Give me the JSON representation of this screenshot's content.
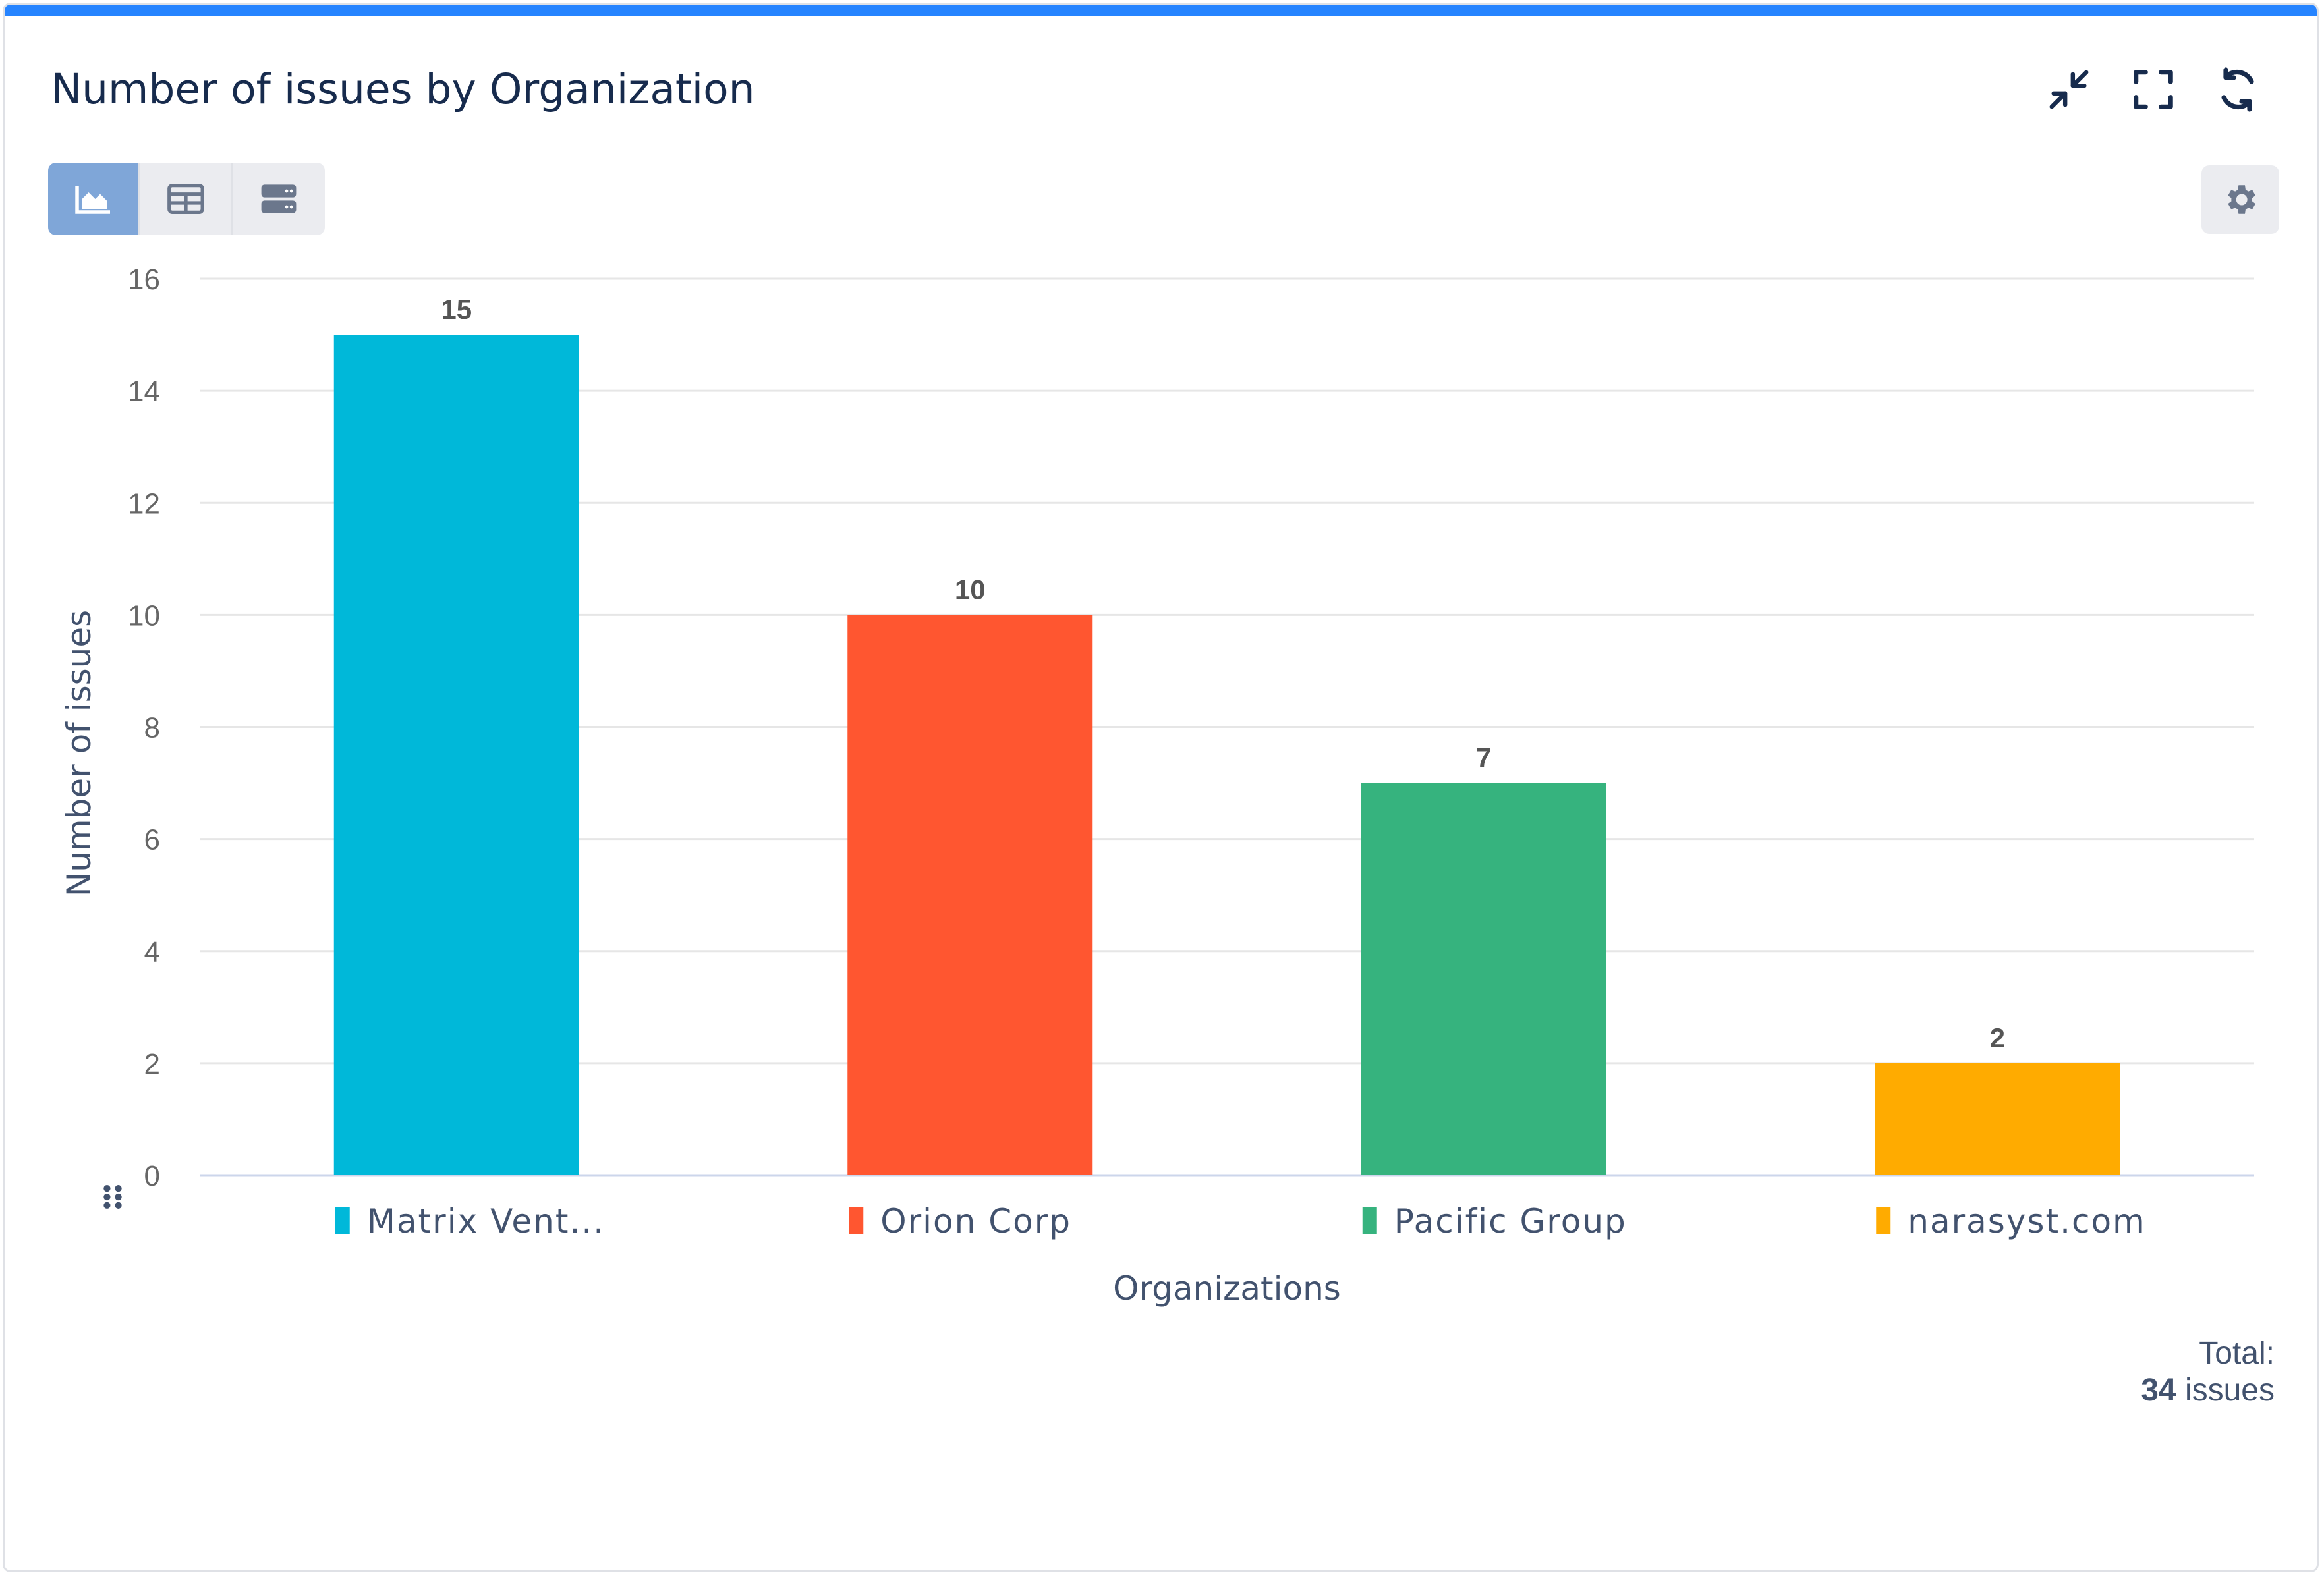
{
  "widget": {
    "title": "Number of issues by Organization",
    "header_icons": [
      "collapse-icon",
      "fullscreen-icon",
      "refresh-icon"
    ],
    "view_toggle": {
      "options": [
        "chart-view",
        "table-view",
        "list-view"
      ],
      "selected": "chart-view"
    },
    "accent_color": "#2684ff"
  },
  "chart_data": {
    "type": "bar",
    "categories": [
      "Matrix Vent...",
      "Orion Corp",
      "Pacific Group",
      "narasyst.com"
    ],
    "values": [
      15,
      10,
      7,
      2
    ],
    "colors": [
      "#00b8d9",
      "#ff5630",
      "#36b37e",
      "#ffab00"
    ],
    "xlabel": "Organizations",
    "ylabel": "Number of issues",
    "ylim": [
      0,
      16
    ],
    "yticks": [
      0,
      2,
      4,
      6,
      8,
      10,
      12,
      14,
      16
    ],
    "grid": true,
    "legend": "below x-axis"
  },
  "total": {
    "label": "Total:",
    "count": "34",
    "unit": "issues"
  }
}
